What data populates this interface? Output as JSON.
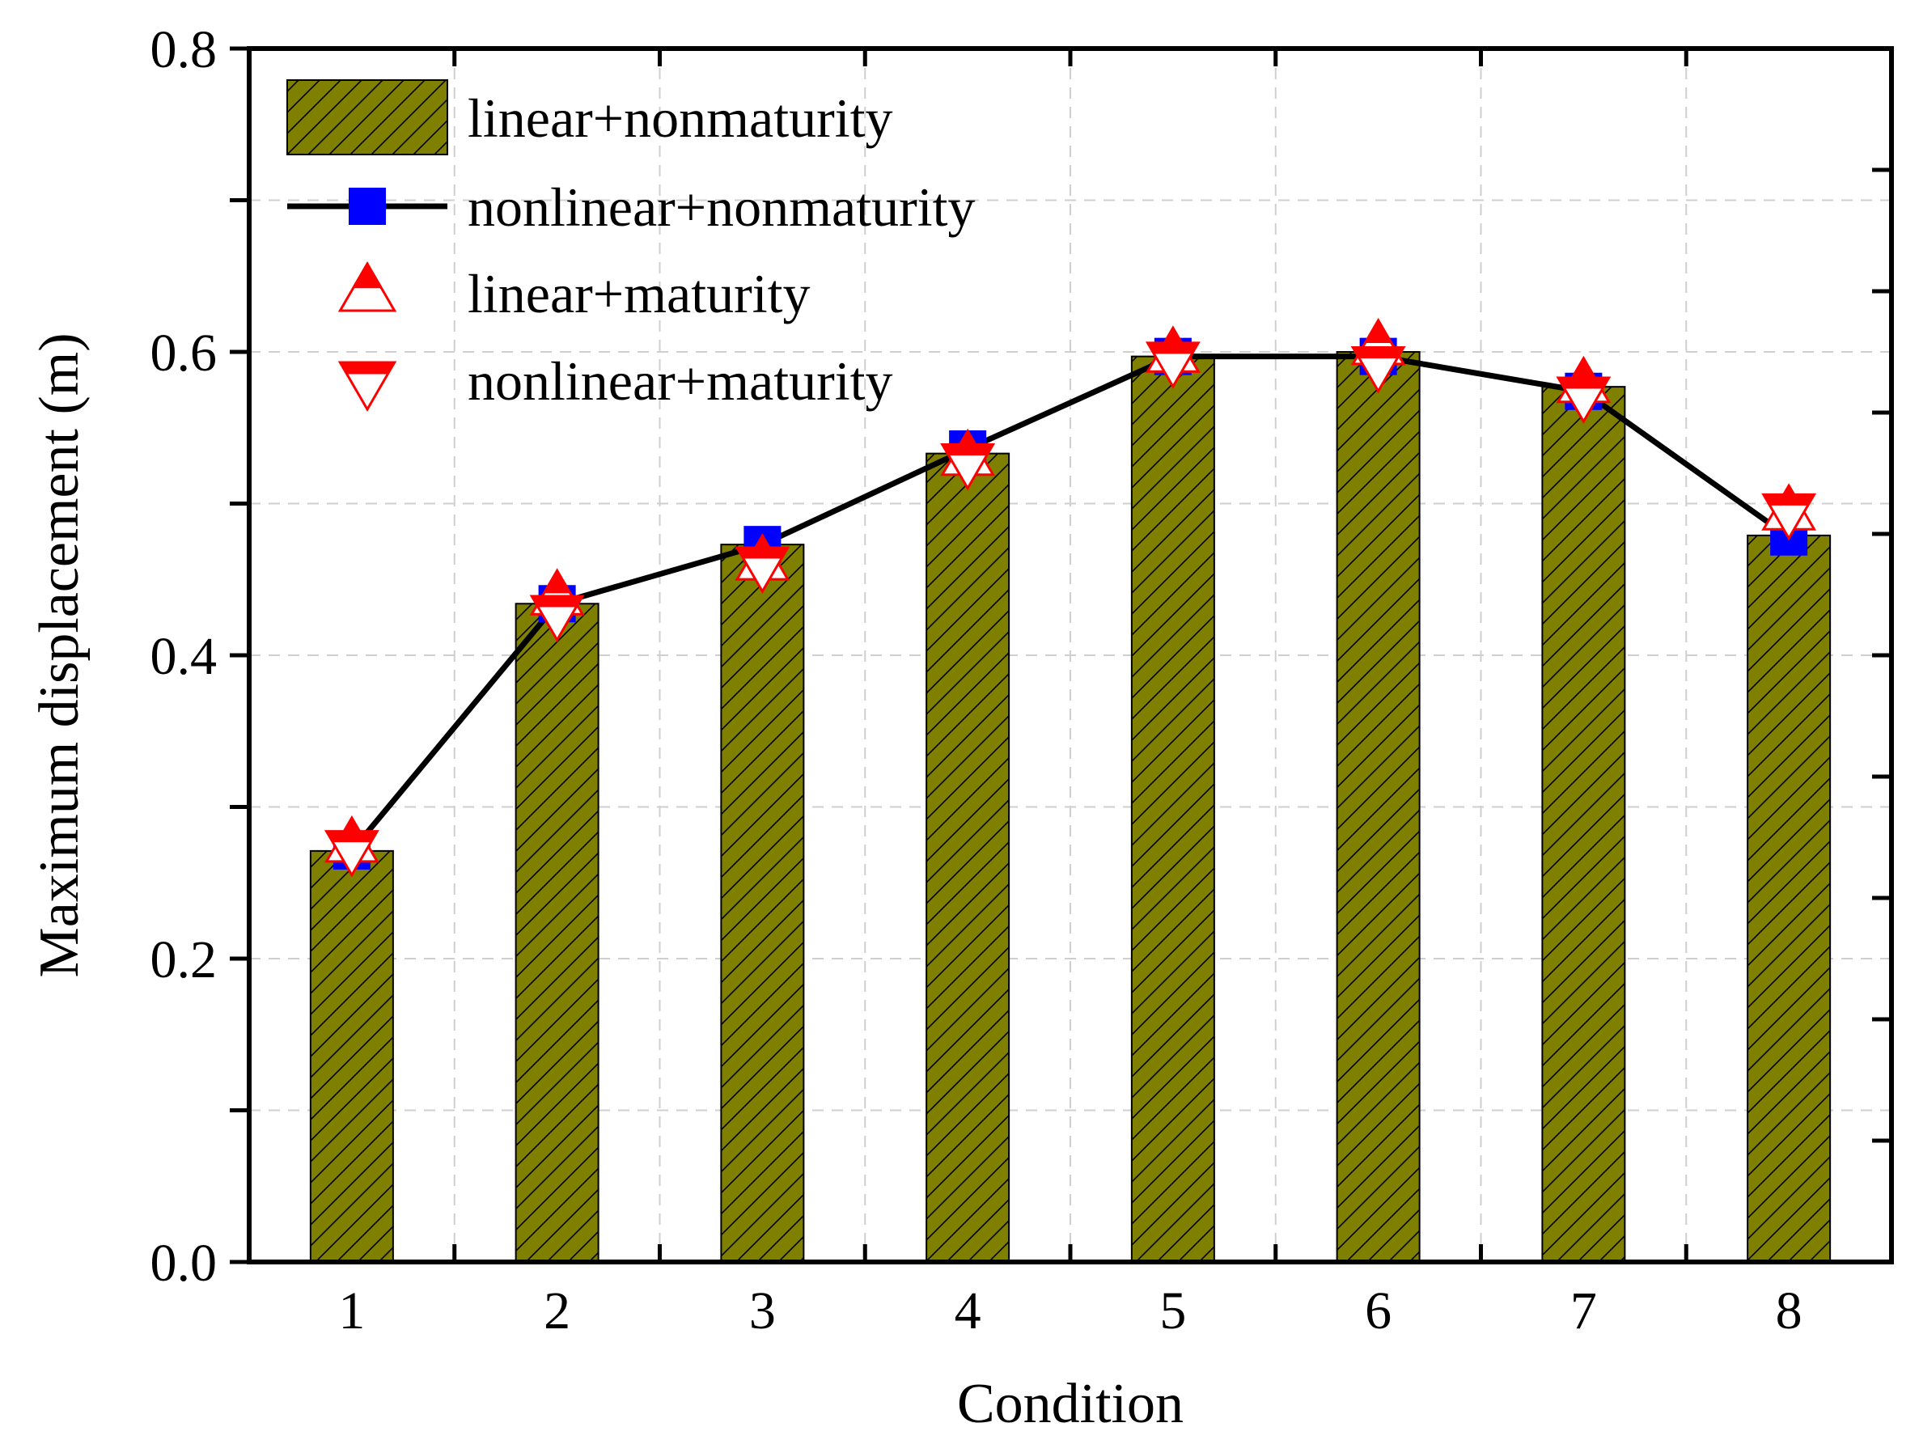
{
  "chart_data": {
    "type": "bar",
    "title": "",
    "xlabel": "Condition",
    "ylabel": "Maximum displacement (m)",
    "categories": [
      "1",
      "2",
      "3",
      "4",
      "5",
      "6",
      "7",
      "8"
    ],
    "ylim": [
      0,
      0.8
    ],
    "yticks": [
      "0.0",
      "0.2",
      "0.4",
      "0.6",
      "0.8"
    ],
    "grid": true,
    "legend_position": "top-left",
    "series": [
      {
        "name": "linear+nonmaturity",
        "kind": "bar",
        "pattern": "hatched",
        "color": "#808000",
        "values": [
          0.271,
          0.434,
          0.473,
          0.533,
          0.597,
          0.6,
          0.577,
          0.479
        ]
      },
      {
        "name": "nonlinear+nonmaturity",
        "kind": "line",
        "marker": "square",
        "color": "#0000ff",
        "line_color": "#000000",
        "values": [
          0.271,
          0.434,
          0.473,
          0.536,
          0.597,
          0.597,
          0.574,
          0.478
        ]
      },
      {
        "name": "linear+maturity",
        "kind": "marker",
        "marker": "triangle-up",
        "color": "#ff0000",
        "values": [
          0.275,
          0.438,
          0.461,
          0.53,
          0.598,
          0.603,
          0.578,
          0.494
        ]
      },
      {
        "name": "nonlinear+maturity",
        "kind": "marker",
        "marker": "triangle-down",
        "color": "#ff0000",
        "values": [
          0.273,
          0.428,
          0.46,
          0.528,
          0.595,
          0.592,
          0.572,
          0.495
        ]
      }
    ]
  }
}
